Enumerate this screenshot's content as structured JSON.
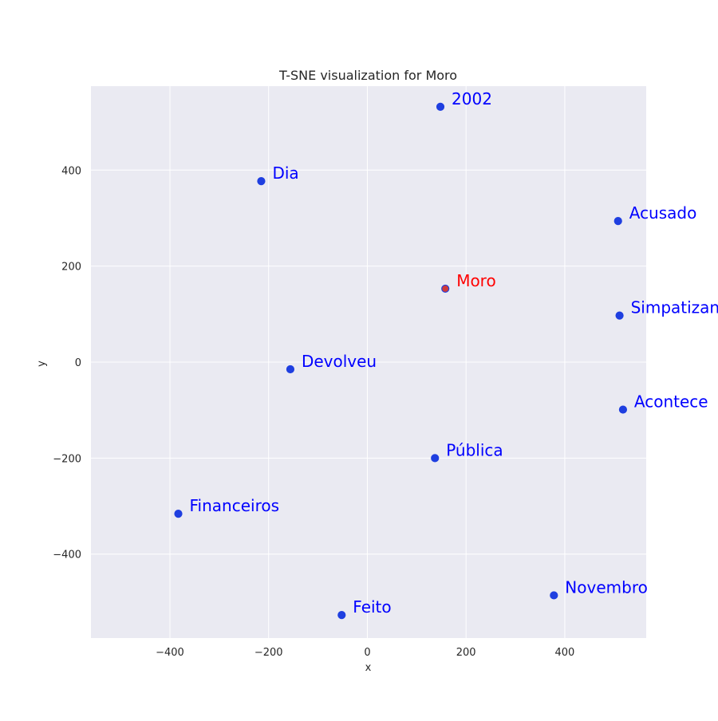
{
  "chart_data": {
    "type": "scatter",
    "title": "T-SNE visualization for Moro",
    "xlabel": "x",
    "ylabel": "y",
    "xlim": [
      -560,
      565
    ],
    "ylim": [
      -575,
      575
    ],
    "xticks": [
      -400,
      -200,
      0,
      200,
      400
    ],
    "yticks": [
      -400,
      -200,
      0,
      200,
      400
    ],
    "xtick_labels": [
      "−400",
      "−200",
      "0",
      "200",
      "400"
    ],
    "ytick_labels": [
      "−400",
      "−200",
      "0",
      "200",
      "400"
    ],
    "grid": true,
    "background_color": "#eaeaf2",
    "grid_color": "#ffffff",
    "point_color": "#1f3fe0",
    "points": [
      {
        "label": "2002",
        "x": 148,
        "y": 532,
        "color": "#0000ff",
        "highlight": false
      },
      {
        "label": "Dia",
        "x": -215,
        "y": 377,
        "color": "#0000ff",
        "highlight": false
      },
      {
        "label": "Acusado",
        "x": 508,
        "y": 294,
        "color": "#0000ff",
        "highlight": false
      },
      {
        "label": "Moro",
        "x": 158,
        "y": 153,
        "color": "#ff0000",
        "highlight": true
      },
      {
        "label": "Simpatizantes",
        "x": 511,
        "y": 97,
        "color": "#0000ff",
        "highlight": false
      },
      {
        "label": "Devolveu",
        "x": -156,
        "y": -15,
        "color": "#0000ff",
        "highlight": false
      },
      {
        "label": "Acontece",
        "x": 518,
        "y": -99,
        "color": "#0000ff",
        "highlight": false
      },
      {
        "label": "Pública",
        "x": 137,
        "y": -200,
        "color": "#0000ff",
        "highlight": false
      },
      {
        "label": "Financeiros",
        "x": -383,
        "y": -316,
        "color": "#0000ff",
        "highlight": false
      },
      {
        "label": "Novembro",
        "x": 378,
        "y": -486,
        "color": "#0000ff",
        "highlight": false
      },
      {
        "label": "Feito",
        "x": -52,
        "y": -527,
        "color": "#0000ff",
        "highlight": false
      }
    ]
  }
}
